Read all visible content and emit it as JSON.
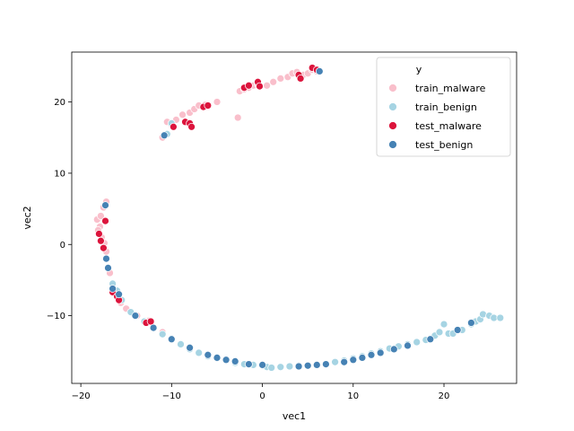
{
  "chart_data": {
    "type": "scatter",
    "xlabel": "vec1",
    "ylabel": "vec2",
    "xlim": [
      -21,
      28
    ],
    "ylim": [
      -19.5,
      27
    ],
    "xticks": [
      -20,
      -10,
      0,
      10,
      20
    ],
    "yticks": [
      -10,
      0,
      10,
      20
    ],
    "grid": false,
    "legend": {
      "placement": "top-right",
      "title": "y",
      "entries": [
        "train_malware",
        "train_benign",
        "test_malware",
        "test_benign"
      ]
    },
    "series": [
      {
        "name": "train_malware",
        "color": "#f9bfcb",
        "points": [
          [
            -18.2,
            3.5
          ],
          [
            -17.8,
            4.0
          ],
          [
            -17.5,
            5.2
          ],
          [
            -17.2,
            6.0
          ],
          [
            -17.9,
            2.5
          ],
          [
            -18.1,
            2.0
          ],
          [
            -17.7,
            1.0
          ],
          [
            -17.4,
            0.2
          ],
          [
            -17.2,
            -1.0
          ],
          [
            -16.8,
            -4.0
          ],
          [
            -16.5,
            -5.5
          ],
          [
            -16.2,
            -7.0
          ],
          [
            -15.6,
            -8.2
          ],
          [
            -15.0,
            -9.0
          ],
          [
            -13.8,
            -10.0
          ],
          [
            -12.5,
            -10.7
          ],
          [
            -11.0,
            -12.3
          ],
          [
            -10.5,
            17.2
          ],
          [
            -10.0,
            16.8
          ],
          [
            -9.5,
            17.5
          ],
          [
            -8.8,
            18.2
          ],
          [
            -8.0,
            18.5
          ],
          [
            -7.5,
            19.0
          ],
          [
            -7.0,
            19.5
          ],
          [
            -6.3,
            19.6
          ],
          [
            -5.0,
            20.0
          ],
          [
            -11.0,
            15.0
          ],
          [
            -2.7,
            17.8
          ],
          [
            -2.5,
            21.5
          ],
          [
            -2.0,
            21.8
          ],
          [
            -1.5,
            22.0
          ],
          [
            -1.0,
            22.3
          ],
          [
            -0.5,
            22.5
          ],
          [
            0.5,
            22.3
          ],
          [
            1.2,
            22.8
          ],
          [
            2.0,
            23.3
          ],
          [
            2.8,
            23.5
          ],
          [
            3.3,
            24.0
          ],
          [
            3.8,
            24.2
          ],
          [
            4.5,
            23.8
          ],
          [
            5.0,
            24.0
          ],
          [
            5.5,
            24.5
          ],
          [
            6.0,
            24.3
          ]
        ]
      },
      {
        "name": "train_benign",
        "color": "#a6d4e3",
        "points": [
          [
            -16.5,
            -5.5
          ],
          [
            -16.0,
            -6.5
          ],
          [
            -15.5,
            -7.8
          ],
          [
            -14.5,
            -9.5
          ],
          [
            -13.0,
            -10.8
          ],
          [
            -11.0,
            -12.6
          ],
          [
            -10.0,
            -13.2
          ],
          [
            -9.0,
            -14.0
          ],
          [
            -8.0,
            -14.7
          ],
          [
            -7.0,
            -15.2
          ],
          [
            -6.0,
            -15.7
          ],
          [
            -5.0,
            -16.0
          ],
          [
            -4.0,
            -16.3
          ],
          [
            -3.0,
            -16.6
          ],
          [
            -2.0,
            -16.8
          ],
          [
            -1.0,
            -16.9
          ],
          [
            0.0,
            -17.0
          ],
          [
            0.5,
            -17.2
          ],
          [
            1.0,
            -17.3
          ],
          [
            2.0,
            -17.2
          ],
          [
            3.0,
            -17.1
          ],
          [
            4.0,
            -17.0
          ],
          [
            5.0,
            -17.0
          ],
          [
            6.0,
            -16.9
          ],
          [
            7.0,
            -16.8
          ],
          [
            8.0,
            -16.5
          ],
          [
            9.0,
            -16.3
          ],
          [
            10.0,
            -16.0
          ],
          [
            11.0,
            -15.7
          ],
          [
            12.0,
            -15.3
          ],
          [
            13.0,
            -15.0
          ],
          [
            14.0,
            -14.6
          ],
          [
            15.0,
            -14.3
          ],
          [
            16.0,
            -14.0
          ],
          [
            17.0,
            -13.7
          ],
          [
            18.0,
            -13.4
          ],
          [
            19.0,
            -12.8
          ],
          [
            19.5,
            -12.3
          ],
          [
            20.0,
            -11.2
          ],
          [
            20.5,
            -12.5
          ],
          [
            21.0,
            -12.5
          ],
          [
            22.0,
            -12.0
          ],
          [
            23.0,
            -11.2
          ],
          [
            23.5,
            -10.8
          ],
          [
            24.0,
            -10.5
          ],
          [
            24.3,
            -9.8
          ],
          [
            25.0,
            -10.0
          ],
          [
            25.5,
            -10.3
          ],
          [
            26.2,
            -10.3
          ],
          [
            -10.0,
            17.0
          ],
          [
            -10.5,
            15.5
          ]
        ]
      },
      {
        "name": "test_malware",
        "color": "#dc143c",
        "points": [
          [
            -18.0,
            1.5
          ],
          [
            -17.8,
            0.5
          ],
          [
            -17.3,
            3.3
          ],
          [
            -17.5,
            -0.5
          ],
          [
            -16.5,
            -6.7
          ],
          [
            -16.0,
            -7.3
          ],
          [
            -15.8,
            -7.8
          ],
          [
            -12.8,
            -11.0
          ],
          [
            -12.3,
            -10.8
          ],
          [
            -9.8,
            16.5
          ],
          [
            -8.5,
            17.2
          ],
          [
            -8.0,
            17.0
          ],
          [
            -7.8,
            16.5
          ],
          [
            -6.5,
            19.3
          ],
          [
            -6.0,
            19.5
          ],
          [
            -2.0,
            22.0
          ],
          [
            -1.5,
            22.3
          ],
          [
            -0.5,
            22.8
          ],
          [
            -0.3,
            22.2
          ],
          [
            4.0,
            23.8
          ],
          [
            4.2,
            23.3
          ],
          [
            5.5,
            24.8
          ],
          [
            6.0,
            24.5
          ]
        ]
      },
      {
        "name": "test_benign",
        "color": "#4682b4",
        "points": [
          [
            -17.3,
            5.5
          ],
          [
            -17.2,
            -2.0
          ],
          [
            -17.0,
            -3.3
          ],
          [
            -16.5,
            -6.2
          ],
          [
            -15.8,
            -7.0
          ],
          [
            -14.0,
            -10.0
          ],
          [
            -12.0,
            -11.7
          ],
          [
            -10.0,
            -13.3
          ],
          [
            -8.0,
            -14.5
          ],
          [
            -6.0,
            -15.5
          ],
          [
            -5.0,
            -15.9
          ],
          [
            -4.0,
            -16.2
          ],
          [
            -3.0,
            -16.4
          ],
          [
            -1.5,
            -16.8
          ],
          [
            0.0,
            -16.9
          ],
          [
            4.0,
            -17.1
          ],
          [
            5.0,
            -17.0
          ],
          [
            6.0,
            -16.9
          ],
          [
            7.0,
            -16.8
          ],
          [
            9.0,
            -16.5
          ],
          [
            10.0,
            -16.2
          ],
          [
            11.0,
            -15.9
          ],
          [
            12.0,
            -15.5
          ],
          [
            13.0,
            -15.2
          ],
          [
            14.5,
            -14.7
          ],
          [
            16.0,
            -14.2
          ],
          [
            18.5,
            -13.3
          ],
          [
            21.5,
            -12.0
          ],
          [
            23.0,
            -11.0
          ],
          [
            -10.8,
            15.3
          ],
          [
            6.3,
            24.3
          ]
        ]
      }
    ]
  }
}
